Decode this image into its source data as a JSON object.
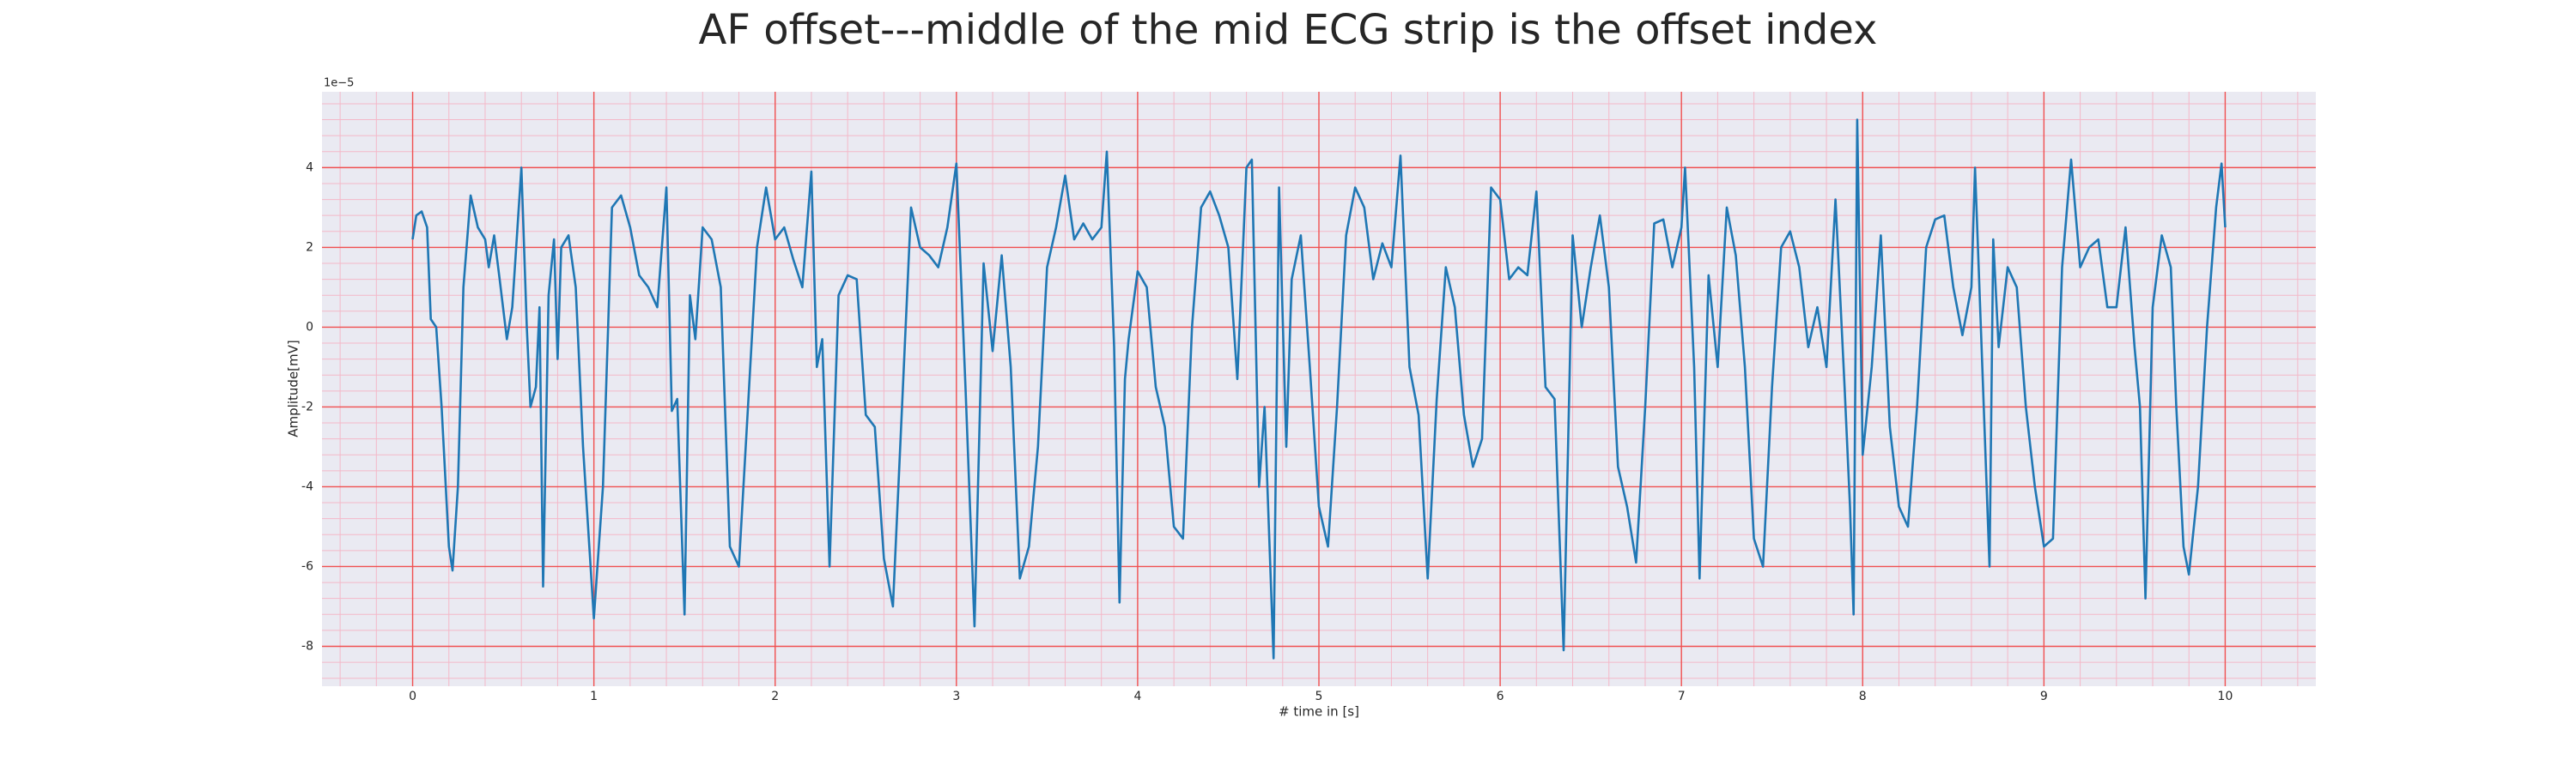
{
  "chart_data": {
    "type": "line",
    "title": "AF offset---middle of the mid ECG strip is the offset index",
    "x_label": "# time in [s]",
    "y_label": "Amplitude[mV]",
    "y_offset_text": "1e−5",
    "color": "#1f77b4",
    "grid": true,
    "minor_grid": true,
    "xlim": [
      -0.5,
      10.5
    ],
    "ylim": [
      -9,
      5.9
    ],
    "xticks": [
      0,
      1,
      2,
      3,
      4,
      5,
      6,
      7,
      8,
      9,
      10
    ],
    "yticks": [
      -8,
      -6,
      -4,
      -2,
      0,
      2,
      4
    ],
    "x": [
      0,
      0.02,
      0.05,
      0.08,
      0.1,
      0.13,
      0.16,
      0.2,
      0.22,
      0.25,
      0.28,
      0.32,
      0.36,
      0.4,
      0.42,
      0.45,
      0.48,
      0.52,
      0.55,
      0.6,
      0.63,
      0.65,
      0.68,
      0.7,
      0.72,
      0.75,
      0.78,
      0.8,
      0.82,
      0.86,
      0.9,
      0.94,
      1.0,
      1.05,
      1.1,
      1.15,
      1.2,
      1.25,
      1.3,
      1.35,
      1.4,
      1.43,
      1.46,
      1.5,
      1.53,
      1.56,
      1.6,
      1.65,
      1.7,
      1.75,
      1.8,
      1.85,
      1.9,
      1.95,
      2.0,
      2.05,
      2.1,
      2.15,
      2.2,
      2.23,
      2.26,
      2.3,
      2.35,
      2.4,
      2.45,
      2.5,
      2.55,
      2.6,
      2.65,
      2.7,
      2.75,
      2.8,
      2.85,
      2.9,
      2.95,
      3.0,
      3.05,
      3.1,
      3.15,
      3.2,
      3.25,
      3.3,
      3.35,
      3.4,
      3.45,
      3.5,
      3.55,
      3.6,
      3.65,
      3.7,
      3.75,
      3.8,
      3.83,
      3.87,
      3.9,
      3.93,
      3.95,
      4.0,
      4.05,
      4.1,
      4.15,
      4.2,
      4.25,
      4.3,
      4.35,
      4.4,
      4.45,
      4.5,
      4.55,
      4.6,
      4.63,
      4.67,
      4.7,
      4.75,
      4.78,
      4.82,
      4.85,
      4.9,
      4.95,
      5.0,
      5.05,
      5.1,
      5.15,
      5.2,
      5.25,
      5.3,
      5.35,
      5.4,
      5.45,
      5.5,
      5.55,
      5.6,
      5.65,
      5.7,
      5.75,
      5.8,
      5.85,
      5.9,
      5.95,
      6.0,
      6.05,
      6.1,
      6.15,
      6.2,
      6.25,
      6.3,
      6.35,
      6.4,
      6.45,
      6.5,
      6.55,
      6.6,
      6.65,
      6.7,
      6.75,
      6.8,
      6.85,
      6.9,
      6.95,
      7.0,
      7.02,
      7.07,
      7.1,
      7.15,
      7.2,
      7.25,
      7.3,
      7.35,
      7.4,
      7.45,
      7.5,
      7.55,
      7.6,
      7.65,
      7.7,
      7.75,
      7.8,
      7.85,
      7.9,
      7.93,
      7.95,
      7.97,
      8.0,
      8.05,
      8.1,
      8.15,
      8.2,
      8.25,
      8.3,
      8.35,
      8.4,
      8.45,
      8.5,
      8.55,
      8.6,
      8.62,
      8.66,
      8.7,
      8.72,
      8.75,
      8.8,
      8.85,
      8.9,
      8.95,
      9.0,
      9.05,
      9.1,
      9.15,
      9.2,
      9.25,
      9.3,
      9.35,
      9.4,
      9.45,
      9.5,
      9.53,
      9.56,
      9.6,
      9.65,
      9.7,
      9.73,
      9.77,
      9.8,
      9.85,
      9.9,
      9.95,
      9.98,
      10.0
    ],
    "values": [
      2.2,
      2.8,
      2.9,
      2.5,
      0.2,
      0,
      -2,
      -5.5,
      -6.1,
      -4,
      1,
      3.3,
      2.5,
      2.2,
      1.5,
      2.3,
      1.2,
      -0.3,
      0.5,
      4,
      0,
      -2,
      -1.5,
      0.5,
      -6.5,
      0.8,
      2.2,
      -0.8,
      2,
      2.3,
      1,
      -3,
      -7.3,
      -4,
      3,
      3.3,
      2.5,
      1.3,
      1.0,
      0.5,
      3.5,
      -2.1,
      -1.8,
      -7.2,
      0.8,
      -0.3,
      2.5,
      2.2,
      1,
      -5.5,
      -6,
      -2,
      2,
      3.5,
      2.2,
      2.5,
      1.7,
      1,
      3.9,
      -1,
      -0.3,
      -6,
      0.8,
      1.3,
      1.2,
      -2.2,
      -2.5,
      -5.8,
      -7,
      -2,
      3,
      2,
      1.8,
      1.5,
      2.5,
      4.1,
      -1.5,
      -7.5,
      1.6,
      -0.6,
      1.8,
      -1,
      -6.3,
      -5.5,
      -3,
      1.5,
      2.5,
      3.8,
      2.2,
      2.6,
      2.2,
      2.5,
      4.4,
      -0.5,
      -6.9,
      -1.3,
      -0.3,
      1.4,
      1,
      -1.5,
      -2.5,
      -5,
      -5.3,
      0,
      3,
      3.4,
      2.8,
      2,
      -1.3,
      4,
      4.2,
      -4,
      -2,
      -8.3,
      3.5,
      -3,
      1.2,
      2.3,
      -1,
      -4.5,
      -5.5,
      -2,
      2.3,
      3.5,
      3,
      1.2,
      2.1,
      1.5,
      4.3,
      -1,
      -2.2,
      -6.3,
      -1.8,
      1.5,
      0.5,
      -2.2,
      -3.5,
      -2.8,
      3.5,
      3.2,
      1.2,
      1.5,
      1.3,
      3.4,
      -1.5,
      -1.8,
      -8.1,
      2.3,
      0,
      1.5,
      2.8,
      1,
      -3.5,
      -4.5,
      -5.9,
      -2,
      2.6,
      2.7,
      1.5,
      2.5,
      4,
      -1,
      -6.3,
      1.3,
      -1,
      3,
      1.8,
      -1,
      -5.3,
      -6,
      -1.5,
      2,
      2.4,
      1.5,
      -0.5,
      0.5,
      -1,
      3.2,
      -1.5,
      -4.5,
      -7.2,
      5.2,
      -3.2,
      -1,
      2.3,
      -2.5,
      -4.5,
      -5,
      -2,
      2,
      2.7,
      2.8,
      1,
      -0.2,
      1,
      4,
      -1,
      -6,
      2.2,
      -0.5,
      1.5,
      1,
      -2,
      -4,
      -5.5,
      -5.3,
      1.5,
      4.2,
      1.5,
      2,
      2.2,
      0.5,
      0.5,
      2.5,
      -0.5,
      -2,
      -6.8,
      0.5,
      2.3,
      1.5,
      -2,
      -5.5,
      -6.2,
      -4,
      0,
      3,
      4.1,
      2.5
    ]
  }
}
